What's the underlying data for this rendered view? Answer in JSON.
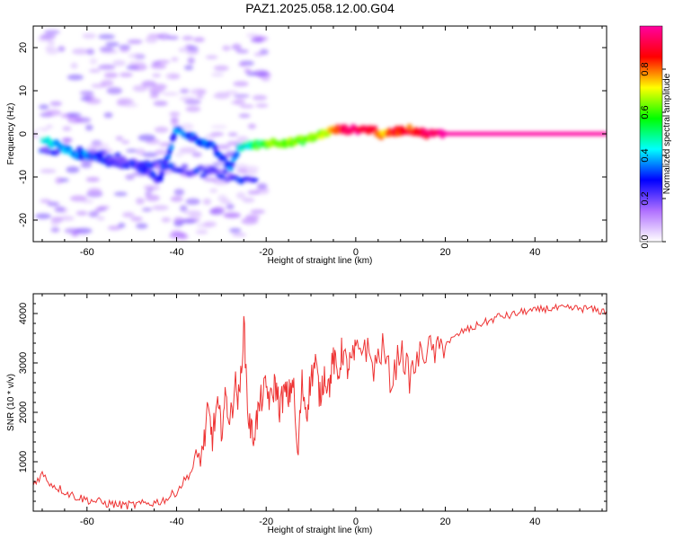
{
  "title": "PAZ1.2025.058.12.00.G04",
  "chart_data": [
    {
      "type": "heatmap",
      "xlabel": "Height of straight line (km)",
      "ylabel": "Frequency (Hz)",
      "xlim": [
        -72,
        56
      ],
      "ylim": [
        -25,
        25
      ],
      "x_ticks": [
        -60,
        -40,
        -20,
        0,
        20,
        40
      ],
      "y_ticks": [
        -20,
        -10,
        0,
        10,
        20
      ],
      "colorbar": {
        "label": "Normalized spectral amplitude",
        "range": [
          0,
          1
        ],
        "ticks": [
          0.0,
          0.2,
          0.4,
          0.6,
          0.8
        ],
        "tick_labels": [
          "0.0",
          "0.2",
          "0.4",
          "0.6",
          "0.8"
        ],
        "colormap": [
          "#ffffff",
          "#b070ff",
          "#0000ff",
          "#00ffff",
          "#00ff00",
          "#ffff00",
          "#ff0000",
          "#ff00a0"
        ]
      },
      "ridge": {
        "x": [
          -70,
          -66,
          -62,
          -58,
          -54,
          -50,
          -46,
          -44,
          -40,
          -36,
          -32,
          -28,
          -26,
          -22,
          -18,
          -14,
          -10,
          -6,
          -4,
          0,
          4,
          6,
          8,
          12,
          16,
          20,
          30,
          40,
          50,
          56
        ],
        "y": [
          -1,
          -3,
          -5,
          -5,
          -7,
          -7,
          -9,
          -11,
          1,
          -1,
          -3,
          -8,
          -3,
          -2.5,
          -2,
          -2,
          -1,
          0.5,
          1,
          1,
          1,
          -0.5,
          0.5,
          1,
          0,
          0,
          0,
          0,
          0,
          0
        ],
        "amp": [
          0.45,
          0.4,
          0.35,
          0.3,
          0.25,
          0.25,
          0.25,
          0.25,
          0.35,
          0.3,
          0.3,
          0.3,
          0.4,
          0.55,
          0.65,
          0.6,
          0.6,
          0.7,
          0.85,
          0.95,
          0.9,
          0.75,
          0.85,
          0.85,
          0.9,
          1,
          1,
          1,
          1,
          1
        ]
      }
    },
    {
      "type": "line",
      "xlabel": "Height of straight line (km)",
      "ylabel": "SNR (10 * v/v)",
      "xlim": [
        -72,
        56
      ],
      "ylim": [
        0,
        4400
      ],
      "x_ticks": [
        -60,
        -40,
        -20,
        0,
        20,
        40
      ],
      "y_ticks": [
        1000,
        2000,
        3000,
        4000
      ],
      "series": [
        {
          "color": "#ee3333",
          "x": [
            -72,
            -70,
            -68,
            -66,
            -64,
            -62,
            -60,
            -58,
            -56,
            -54,
            -52,
            -50,
            -48,
            -46,
            -44,
            -42,
            -40,
            -38,
            -36,
            -34,
            -33,
            -32,
            -31,
            -30,
            -29,
            -28,
            -27,
            -26,
            -25,
            -24,
            -23,
            -22,
            -21,
            -20,
            -19,
            -18,
            -17,
            -16,
            -15,
            -14,
            -13,
            -12,
            -11,
            -10,
            -9,
            -8,
            -7,
            -6,
            -5,
            -4,
            -3,
            -2,
            -1,
            0,
            2,
            4,
            6,
            8,
            10,
            12,
            14,
            16,
            18,
            20,
            22,
            24,
            26,
            28,
            30,
            32,
            34,
            36,
            38,
            40,
            42,
            44,
            46,
            48,
            50,
            52,
            54,
            56
          ],
          "values": [
            550,
            750,
            550,
            450,
            350,
            280,
            230,
            200,
            160,
            140,
            120,
            120,
            140,
            160,
            190,
            260,
            400,
            650,
            900,
            1300,
            2000,
            1500,
            2100,
            1700,
            2300,
            1800,
            2600,
            2200,
            3800,
            1900,
            1500,
            1900,
            2300,
            2500,
            2200,
            2600,
            2100,
            2400,
            2300,
            2700,
            1000,
            2600,
            2000,
            2700,
            3000,
            2300,
            2800,
            2500,
            3100,
            2700,
            3300,
            2900,
            3000,
            3200,
            3400,
            2900,
            3300,
            2600,
            3300,
            2700,
            3100,
            3300,
            3200,
            3400,
            3500,
            3650,
            3700,
            3800,
            3850,
            3950,
            3950,
            4000,
            4050,
            4050,
            4100,
            4100,
            4100,
            4100,
            4100,
            4100,
            4050,
            4050
          ]
        }
      ]
    }
  ]
}
